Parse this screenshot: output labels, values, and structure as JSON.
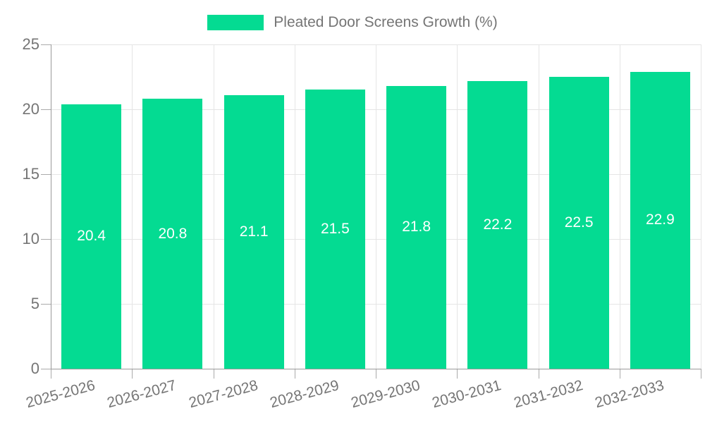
{
  "legend": {
    "label": "Pleated Door Screens Growth (%)",
    "swatch_color": "#04db92"
  },
  "chart_data": {
    "type": "bar",
    "title": "Pleated Door Screens Growth (%)",
    "categories": [
      "2025-2026",
      "2026-2027",
      "2027-2028",
      "2028-2029",
      "2029-2030",
      "2030-2031",
      "2031-2032",
      "2032-2033"
    ],
    "series": [
      {
        "name": "Pleated Door Screens Growth (%)",
        "values": [
          20.4,
          20.8,
          21.1,
          21.5,
          21.8,
          22.2,
          22.5,
          22.9
        ],
        "data_labels": [
          "20.4",
          "20.8",
          "21.1",
          "21.5",
          "21.8",
          "22.2",
          "22.5",
          "22.9"
        ]
      }
    ],
    "xlabel": "",
    "ylabel": "",
    "ylim": [
      0,
      25
    ],
    "yticks": [
      0,
      5,
      10,
      15,
      20,
      25
    ],
    "grid": true,
    "legend_position": "top-center",
    "bar_color": "#04db92",
    "value_label_color": "#ffffff",
    "axis_text_color": "#757575",
    "axis_line_color": "#9a9a9a",
    "grid_color": "#e5e5e5"
  }
}
